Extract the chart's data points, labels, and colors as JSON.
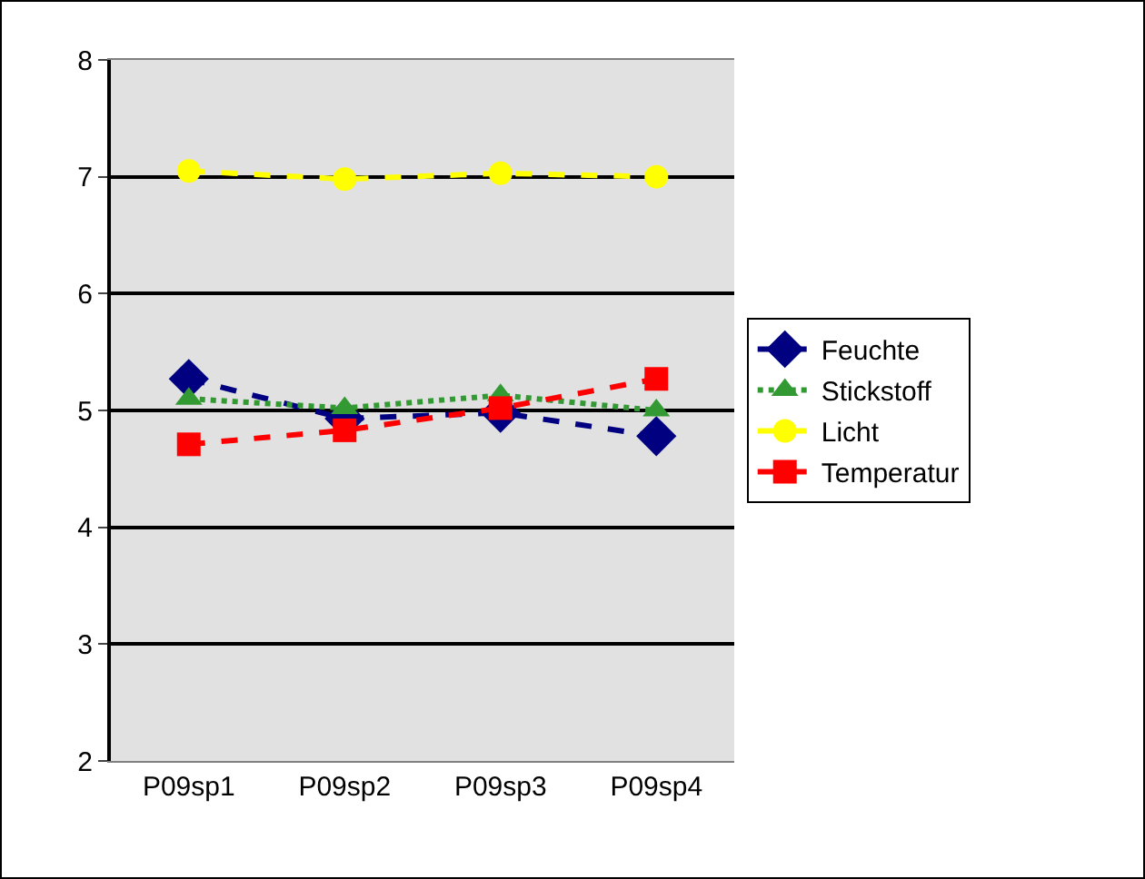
{
  "chart_data": {
    "type": "line",
    "categories": [
      "P09sp1",
      "P09sp2",
      "P09sp3",
      "P09sp4"
    ],
    "series": [
      {
        "name": "Feuchte",
        "color": "#000080",
        "marker": "diamond",
        "line_style": "dashed",
        "values": [
          5.27,
          4.93,
          4.98,
          4.78
        ]
      },
      {
        "name": "Stickstoff",
        "color": "#339933",
        "marker": "triangle",
        "line_style": "dotted",
        "values": [
          5.1,
          5.02,
          5.13,
          5.0
        ]
      },
      {
        "name": "Licht",
        "color": "#ffff00",
        "marker": "circle",
        "line_style": "dashed",
        "values": [
          7.05,
          6.98,
          7.03,
          7.0
        ]
      },
      {
        "name": "Temperatur",
        "color": "#ff0000",
        "marker": "square",
        "line_style": "dashed",
        "values": [
          4.71,
          4.83,
          5.02,
          5.27
        ]
      }
    ],
    "ylim": [
      2,
      8
    ],
    "yticks": [
      2,
      3,
      4,
      5,
      6,
      7,
      8
    ],
    "grid": "y",
    "legend": "right"
  }
}
